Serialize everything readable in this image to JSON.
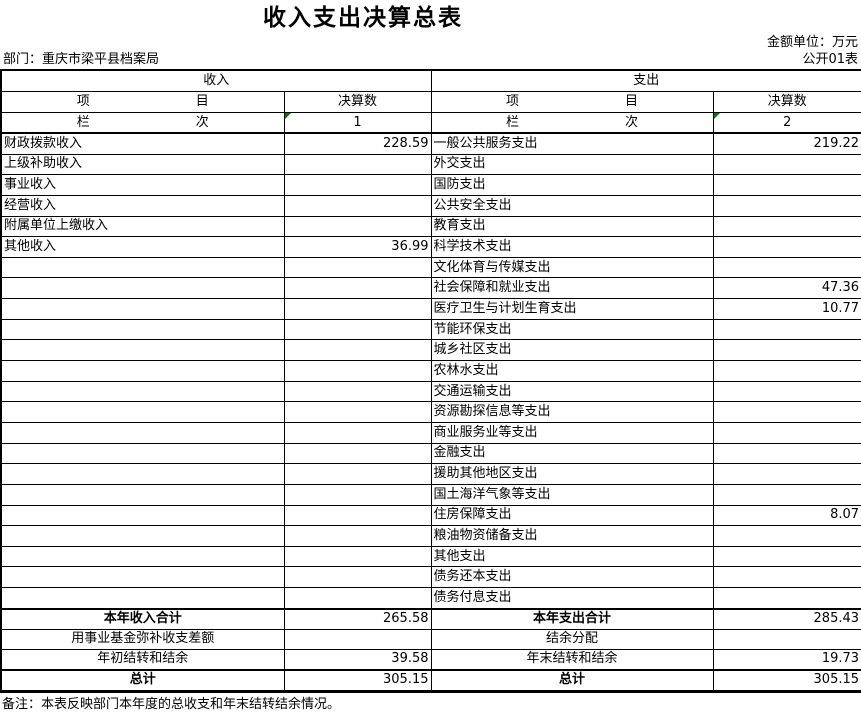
{
  "page": {
    "title": "收入支出决算总表",
    "unit_note": "金额单位：万元",
    "department": "部门：重庆市梁平县档案局",
    "table_code": "公开01表",
    "footnote": "备注：本表反映部门本年度的总收支和年末结转结余情况。"
  },
  "table": {
    "income_header": "收入",
    "expense_header": "支出",
    "item_label": [
      "项",
      "目"
    ],
    "value_label": "决算数",
    "lanci_label": [
      "栏",
      "次"
    ],
    "income_col_no": "1",
    "expense_col_no": "2",
    "comment_marker_color": "#0a7000",
    "rows": [
      {
        "left": {
          "item": "财政拨款收入",
          "value": "228.59"
        },
        "right": {
          "item": "一般公共服务支出",
          "value": "219.22"
        }
      },
      {
        "left": {
          "item": "上级补助收入",
          "value": ""
        },
        "right": {
          "item": "外交支出",
          "value": ""
        }
      },
      {
        "left": {
          "item": "事业收入",
          "value": ""
        },
        "right": {
          "item": "国防支出",
          "value": ""
        }
      },
      {
        "left": {
          "item": "经营收入",
          "value": ""
        },
        "right": {
          "item": "公共安全支出",
          "value": ""
        }
      },
      {
        "left": {
          "item": "附属单位上缴收入",
          "value": ""
        },
        "right": {
          "item": "教育支出",
          "value": ""
        }
      },
      {
        "left": {
          "item": "其他收入",
          "value": "36.99"
        },
        "right": {
          "item": "科学技术支出",
          "value": ""
        }
      },
      {
        "left": {
          "item": "",
          "value": ""
        },
        "right": {
          "item": "文化体育与传媒支出",
          "value": ""
        }
      },
      {
        "left": {
          "item": "",
          "value": ""
        },
        "right": {
          "item": "社会保障和就业支出",
          "value": "47.36"
        }
      },
      {
        "left": {
          "item": "",
          "value": ""
        },
        "right": {
          "item": "医疗卫生与计划生育支出",
          "value": "10.77"
        }
      },
      {
        "left": {
          "item": "",
          "value": ""
        },
        "right": {
          "item": "节能环保支出",
          "value": ""
        }
      },
      {
        "left": {
          "item": "",
          "value": ""
        },
        "right": {
          "item": "城乡社区支出",
          "value": ""
        }
      },
      {
        "left": {
          "item": "",
          "value": ""
        },
        "right": {
          "item": "农林水支出",
          "value": ""
        }
      },
      {
        "left": {
          "item": "",
          "value": ""
        },
        "right": {
          "item": "交通运输支出",
          "value": ""
        }
      },
      {
        "left": {
          "item": "",
          "value": ""
        },
        "right": {
          "item": "资源勘探信息等支出",
          "value": ""
        }
      },
      {
        "left": {
          "item": "",
          "value": ""
        },
        "right": {
          "item": "商业服务业等支出",
          "value": ""
        }
      },
      {
        "left": {
          "item": "",
          "value": ""
        },
        "right": {
          "item": "金融支出",
          "value": ""
        }
      },
      {
        "left": {
          "item": "",
          "value": ""
        },
        "right": {
          "item": "援助其他地区支出",
          "value": ""
        }
      },
      {
        "left": {
          "item": "",
          "value": ""
        },
        "right": {
          "item": "国土海洋气象等支出",
          "value": ""
        }
      },
      {
        "left": {
          "item": "",
          "value": ""
        },
        "right": {
          "item": "住房保障支出",
          "value": "8.07"
        }
      },
      {
        "left": {
          "item": "",
          "value": ""
        },
        "right": {
          "item": "粮油物资储备支出",
          "value": ""
        }
      },
      {
        "left": {
          "item": "",
          "value": ""
        },
        "right": {
          "item": "其他支出",
          "value": ""
        }
      },
      {
        "left": {
          "item": "",
          "value": ""
        },
        "right": {
          "item": "债务还本支出",
          "value": ""
        }
      },
      {
        "left": {
          "item": "",
          "value": ""
        },
        "right": {
          "item": "债务付息支出",
          "value": ""
        }
      }
    ],
    "summary_rows": [
      {
        "bold": true,
        "left": {
          "item": "本年收入合计",
          "value": "265.58"
        },
        "right": {
          "item": "本年支出合计",
          "value": "285.43"
        }
      },
      {
        "bold": false,
        "left": {
          "item": "用事业基金弥补收支差额",
          "value": ""
        },
        "right": {
          "item": "结余分配",
          "value": ""
        }
      },
      {
        "bold": false,
        "left": {
          "item": "年初结转和结余",
          "value": "39.58"
        },
        "right": {
          "item": "年末结转和结余",
          "value": "19.73"
        }
      },
      {
        "bold": true,
        "left": {
          "item": "总计",
          "value": "305.15"
        },
        "right": {
          "item": "总计",
          "value": "305.15"
        }
      }
    ]
  }
}
